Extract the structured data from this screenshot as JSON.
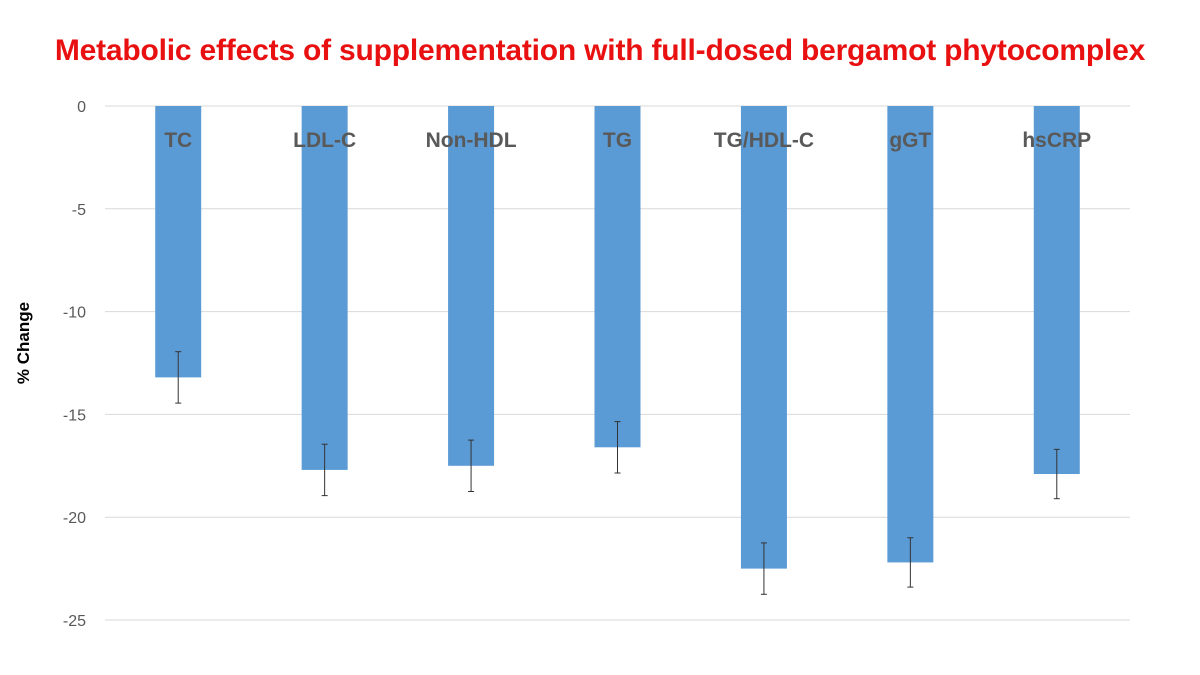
{
  "chart_data": {
    "type": "bar",
    "title": "Metabolic effects of supplementation with full-dosed bergamot phytocomplex",
    "xlabel": "",
    "ylabel": "% Change",
    "ylim": [
      -25,
      0
    ],
    "yticks": [
      0,
      -5,
      -10,
      -15,
      -20,
      -25
    ],
    "grid": true,
    "categories": [
      "TC",
      "LDL-C",
      "Non-HDL",
      "TG",
      "TG/HDL-C",
      "gGT",
      "hsCRP"
    ],
    "values": [
      -13.2,
      -17.7,
      -17.5,
      -16.6,
      -22.5,
      -22.2,
      -17.9
    ],
    "error": [
      1.25,
      1.25,
      1.25,
      1.25,
      1.25,
      1.2,
      1.2
    ]
  },
  "colors": {
    "bar": "#5b9bd5",
    "title": "#e81010",
    "grid": "#d9d9d9",
    "tick_text": "#595959",
    "category_text": "#595959"
  }
}
